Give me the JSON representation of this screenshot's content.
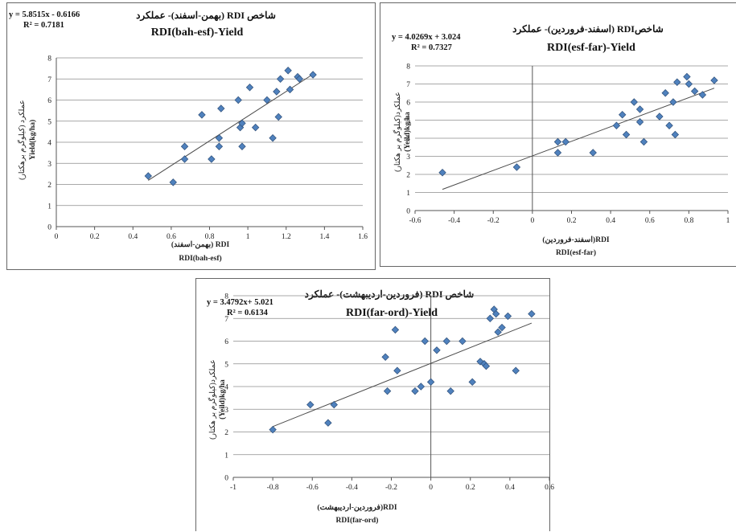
{
  "chart_data": [
    {
      "type": "scatter",
      "title_fa": "شاخص RDI (بهمن-اسفند)- عملکرد",
      "title": "RDI(bah-esf)-Yield",
      "trendline": {
        "equation": "y = 5.8515x - 0.6166",
        "r2": "R² = 0.7181",
        "slope": 5.8515,
        "intercept": -0.6166
      },
      "xlabel": "RDI (بهمن-اسفند)",
      "xlabel2": "RDI(bah-esf)",
      "ylabel": "Yield(kg/ha)",
      "ylabel_fa": "عملکرد (کیلوگرم برهکتار)",
      "xlim": [
        0,
        1.6
      ],
      "ylim": [
        0,
        8
      ],
      "xticks": [
        "0",
        "0.2",
        "0.4",
        "0.6",
        "0.8",
        "1",
        "1.2",
        "1.4",
        "1.6"
      ],
      "yticks": [
        "0",
        "1",
        "2",
        "3",
        "4",
        "5",
        "6",
        "7",
        "8"
      ],
      "grid": "horizontal",
      "marker_color": "#4f81bd",
      "points": [
        [
          0.48,
          2.4
        ],
        [
          0.61,
          2.1
        ],
        [
          0.67,
          3.8
        ],
        [
          0.67,
          3.2
        ],
        [
          0.76,
          5.3
        ],
        [
          0.81,
          3.2
        ],
        [
          0.85,
          4.2
        ],
        [
          0.85,
          3.8
        ],
        [
          0.86,
          5.6
        ],
        [
          0.95,
          6.0
        ],
        [
          0.96,
          4.7
        ],
        [
          0.97,
          4.9
        ],
        [
          0.97,
          3.8
        ],
        [
          1.01,
          6.6
        ],
        [
          1.04,
          4.7
        ],
        [
          1.1,
          6.0
        ],
        [
          1.13,
          4.2
        ],
        [
          1.15,
          6.4
        ],
        [
          1.16,
          5.2
        ],
        [
          1.17,
          7.0
        ],
        [
          1.21,
          7.4
        ],
        [
          1.22,
          6.5
        ],
        [
          1.26,
          7.1
        ],
        [
          1.27,
          7.0
        ],
        [
          1.34,
          7.2
        ]
      ]
    },
    {
      "type": "scatter",
      "title_fa": "شاخصRDI (اسفند-فروردین)- عملکرد",
      "title": "RDI(esf-far)-Yield",
      "trendline": {
        "equation": "y = 4.0269x + 3.024",
        "r2": "R² = 0.7327",
        "slope": 4.0269,
        "intercept": 3.024
      },
      "xlabel": "RDI(اسفند-فروردین)",
      "xlabel2": "RDI(esf-far)",
      "ylabel": "(Yeild)kg/ha",
      "ylabel_fa": "عملکرد(کیلوگرم بر هکتار)",
      "xlim": [
        -0.6,
        1.0
      ],
      "ylim": [
        0,
        8
      ],
      "xticks": [
        "-0.6",
        "-0.4",
        "-0.2",
        "0",
        "0.2",
        "0.4",
        "0.6",
        "0.8",
        "1"
      ],
      "yticks": [
        "0",
        "1",
        "2",
        "3",
        "4",
        "5",
        "6",
        "7",
        "8"
      ],
      "grid": "horizontal",
      "marker_color": "#4f81bd",
      "points": [
        [
          -0.46,
          2.1
        ],
        [
          -0.08,
          2.4
        ],
        [
          0.13,
          3.2
        ],
        [
          0.13,
          3.8
        ],
        [
          0.17,
          3.8
        ],
        [
          0.31,
          3.2
        ],
        [
          0.43,
          4.7
        ],
        [
          0.46,
          5.3
        ],
        [
          0.48,
          4.2
        ],
        [
          0.52,
          6.0
        ],
        [
          0.55,
          5.6
        ],
        [
          0.55,
          4.9
        ],
        [
          0.57,
          3.8
        ],
        [
          0.65,
          5.2
        ],
        [
          0.68,
          6.5
        ],
        [
          0.7,
          4.7
        ],
        [
          0.72,
          6.0
        ],
        [
          0.73,
          4.2
        ],
        [
          0.74,
          7.1
        ],
        [
          0.79,
          7.4
        ],
        [
          0.8,
          7.0
        ],
        [
          0.83,
          6.6
        ],
        [
          0.87,
          6.4
        ],
        [
          0.93,
          7.2
        ]
      ]
    },
    {
      "type": "scatter",
      "title_fa": "شاخص RDI (فروردین-اردیبهشت)- عملکرد",
      "title": "RDI(far-ord)-Yield",
      "trendline": {
        "equation": "y = 3.4792x+ 5.021",
        "r2": "R² = 0.6134",
        "slope": 3.4792,
        "intercept": 5.021
      },
      "xlabel": "RDI(فروردین-اردیبهشت)",
      "xlabel2": "RDI(far-ord)",
      "ylabel": "(Yeild)kg/ha",
      "ylabel_fa": "عملکرد(کیلوگرم بر هکتار)",
      "xlim": [
        -1,
        0.6
      ],
      "ylim": [
        0,
        8
      ],
      "xticks": [
        "-1",
        "-0.8",
        "-0.6",
        "-0.4",
        "-0.2",
        "0",
        "0.2",
        "0.4",
        "0.6"
      ],
      "yticks": [
        "0",
        "1",
        "2",
        "3",
        "4",
        "5",
        "6",
        "7",
        "8"
      ],
      "grid": "horizontal",
      "marker_color": "#4f81bd",
      "points": [
        [
          -0.8,
          2.1
        ],
        [
          -0.61,
          3.2
        ],
        [
          -0.52,
          2.4
        ],
        [
          -0.49,
          3.2
        ],
        [
          -0.23,
          5.3
        ],
        [
          -0.22,
          3.8
        ],
        [
          -0.18,
          6.5
        ],
        [
          -0.17,
          4.7
        ],
        [
          -0.08,
          3.8
        ],
        [
          -0.05,
          4.0
        ],
        [
          -0.03,
          6.0
        ],
        [
          0.0,
          4.2
        ],
        [
          0.03,
          5.6
        ],
        [
          0.08,
          6.0
        ],
        [
          0.1,
          3.8
        ],
        [
          0.16,
          6.0
        ],
        [
          0.21,
          4.2
        ],
        [
          0.25,
          5.1
        ],
        [
          0.27,
          5.0
        ],
        [
          0.28,
          4.9
        ],
        [
          0.3,
          7.0
        ],
        [
          0.32,
          7.4
        ],
        [
          0.33,
          7.2
        ],
        [
          0.34,
          6.4
        ],
        [
          0.36,
          6.6
        ],
        [
          0.39,
          7.1
        ],
        [
          0.43,
          4.7
        ],
        [
          0.51,
          7.2
        ]
      ]
    }
  ]
}
